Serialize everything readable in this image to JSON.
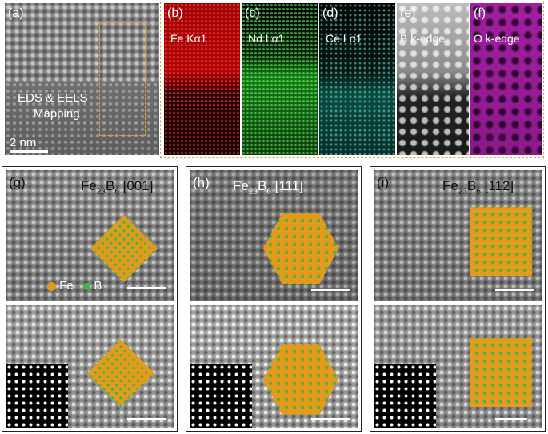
{
  "top": {
    "panel_a": {
      "tag": "(a)",
      "caption_line1": "EDS & EELS",
      "caption_line2": "Mapping",
      "scale": "2 nm"
    },
    "maps": [
      {
        "tag": "(b)",
        "label": "Fe Kα1"
      },
      {
        "tag": "(c)",
        "label": "Nd Lα1"
      },
      {
        "tag": "(d)",
        "label": "Ce Lα1"
      },
      {
        "tag": "(e)",
        "label": "B k-edge"
      },
      {
        "tag": "(f)",
        "label": "O k-edge"
      }
    ]
  },
  "bottom": [
    {
      "tag": "(g)",
      "formula_fe": "Fe",
      "formula_fe_sub": "23",
      "formula_b": "B",
      "formula_b_sub": "6",
      "zone": "[001]"
    },
    {
      "tag": "(h)",
      "formula_fe": "Fe",
      "formula_fe_sub": "23",
      "formula_b": "B",
      "formula_b_sub": "6",
      "zone": "[111]"
    },
    {
      "tag": "(i)",
      "formula_fe": "Fe",
      "formula_fe_sub": "23",
      "formula_b": "B",
      "formula_b_sub": "6",
      "zone": "[112]"
    }
  ],
  "legend": {
    "fe": "Fe",
    "b": "B",
    "fe_color": "#e69a1c",
    "b_color": "#3fb83f"
  },
  "colors": {
    "highlight_box": "#d6a23a"
  }
}
